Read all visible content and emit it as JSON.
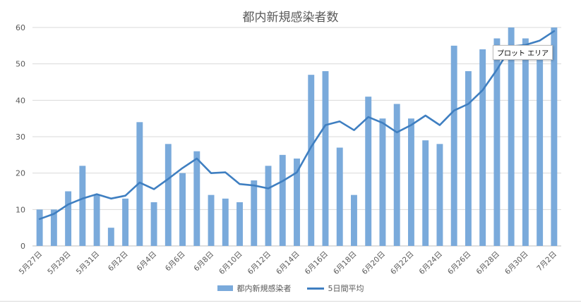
{
  "chart_data": {
    "type": "bar",
    "title": "都内新規感染者数",
    "ylim": [
      0,
      60
    ],
    "yticks": [
      0,
      10,
      20,
      30,
      40,
      50,
      60
    ],
    "grid": true,
    "legend_position": "bottom",
    "categories": [
      "5月27日",
      "5月28日",
      "5月29日",
      "5月30日",
      "5月31日",
      "6月1日",
      "6月2日",
      "6月3日",
      "6月4日",
      "6月5日",
      "6月6日",
      "6月7日",
      "6月8日",
      "6月9日",
      "6月10日",
      "6月11日",
      "6月12日",
      "6月13日",
      "6月14日",
      "6月15日",
      "6月16日",
      "6月17日",
      "6月18日",
      "6月19日",
      "6月20日",
      "6月21日",
      "6月22日",
      "6月23日",
      "6月24日",
      "6月25日",
      "6月26日",
      "6月27日",
      "6月28日",
      "6月29日",
      "6月30日",
      "7月1日",
      "7月2日"
    ],
    "x_tick_labels": [
      "5月27日",
      "5月29日",
      "5月31日",
      "6月2日",
      "6月4日",
      "6月6日",
      "6月8日",
      "6月10日",
      "6月12日",
      "6月14日",
      "6月16日",
      "6月18日",
      "6月20日",
      "6月22日",
      "6月24日",
      "6月26日",
      "6月28日",
      "6月30日",
      "7月2日"
    ],
    "series": [
      {
        "name": "都内新規感染者",
        "type": "bar",
        "color": "#7aaadb",
        "values": [
          10,
          10,
          15,
          22,
          14,
          5,
          13,
          34,
          12,
          28,
          20,
          26,
          14,
          13,
          12,
          18,
          22,
          25,
          24,
          47,
          48,
          27,
          14,
          41,
          35,
          39,
          35,
          29,
          28,
          55,
          48,
          54,
          57,
          60,
          57,
          54,
          60
        ]
      },
      {
        "name": "5日間平均",
        "type": "line",
        "color": "#3f7fc1",
        "values": [
          7.4,
          8.8,
          11.4,
          13,
          14.2,
          13,
          13.8,
          17.4,
          15.6,
          18.4,
          21.4,
          24,
          20,
          20.2,
          17,
          16.6,
          15.8,
          17.8,
          20.2,
          27.2,
          33.2,
          34.2,
          31.8,
          35.4,
          33.8,
          31.2,
          33.2,
          35.8,
          33.2,
          37.2,
          39,
          42.8,
          48.4,
          54.8,
          55.2,
          56.4,
          59
        ]
      }
    ]
  },
  "tooltip": {
    "label": "プロット エリア"
  }
}
